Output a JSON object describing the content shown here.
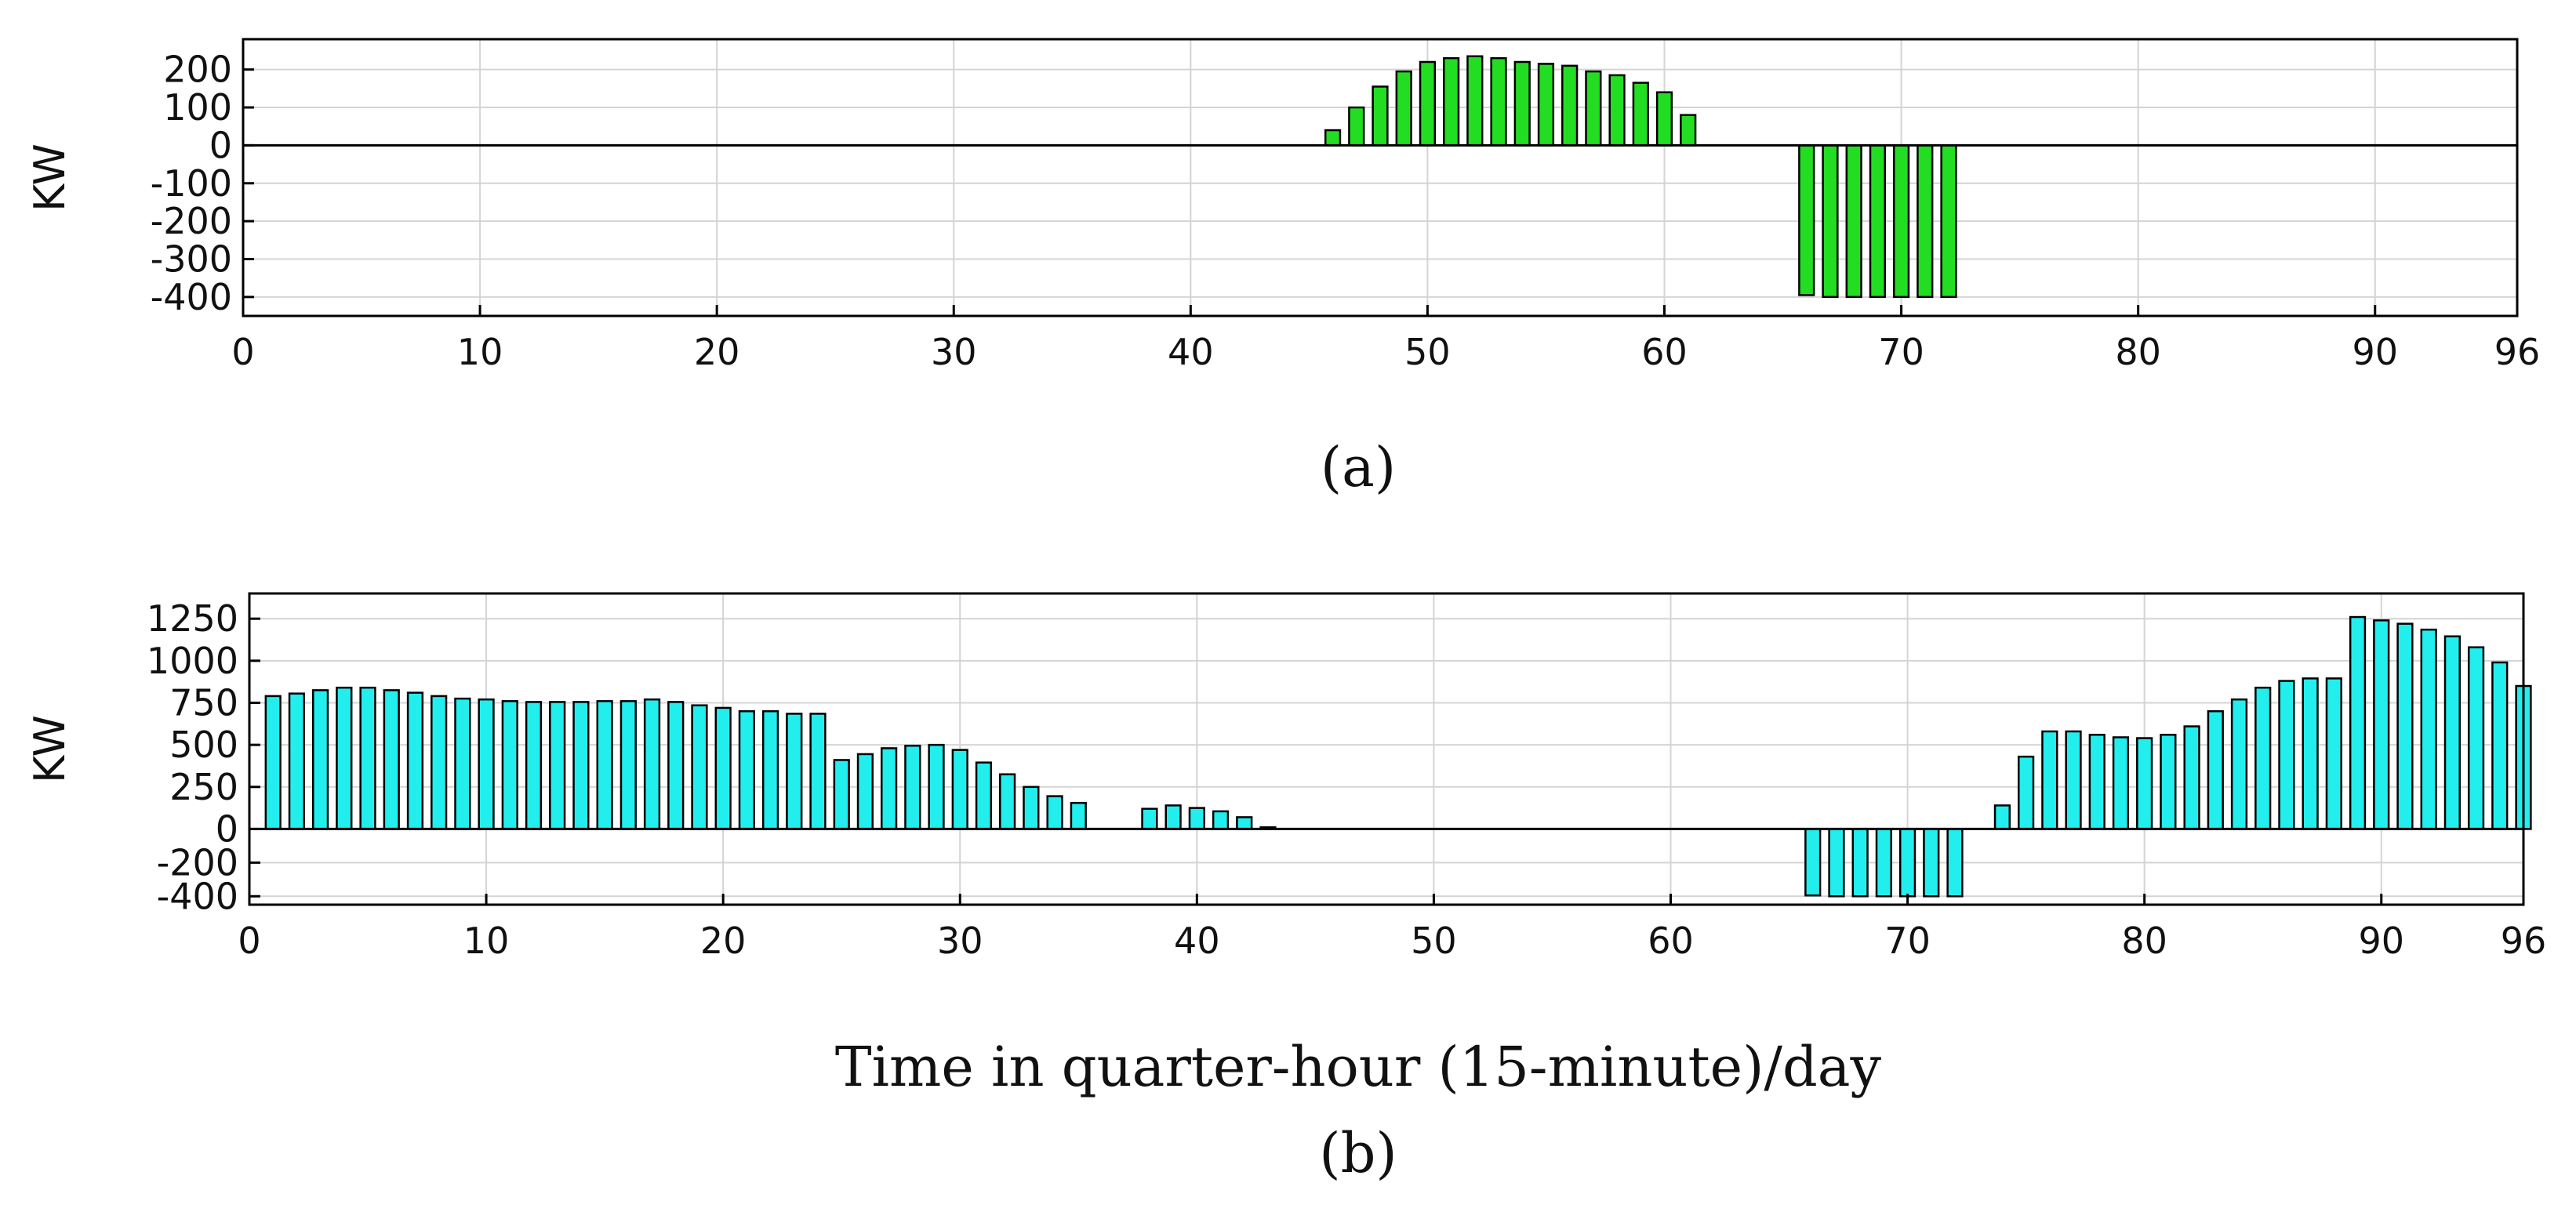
{
  "figure": {
    "xlabel": "Time in quarter-hour (15-minute)/day"
  },
  "chart_data": [
    {
      "type": "bar",
      "caption": "(a)",
      "ylabel": "KW",
      "xlim": [
        0,
        96
      ],
      "ylim": [
        -450,
        280
      ],
      "xticks": [
        0,
        10,
        20,
        30,
        40,
        50,
        60,
        70,
        80,
        90,
        96
      ],
      "yticks": [
        -400,
        -300,
        -200,
        -100,
        0,
        100,
        200
      ],
      "grid": true,
      "bar_color": "#22dd22",
      "x": [
        46,
        47,
        48,
        49,
        50,
        51,
        52,
        53,
        54,
        55,
        56,
        57,
        58,
        59,
        60,
        61,
        66,
        67,
        68,
        69,
        70,
        71,
        72
      ],
      "values": [
        40,
        100,
        155,
        195,
        220,
        230,
        235,
        230,
        220,
        215,
        210,
        195,
        185,
        165,
        140,
        80,
        -395,
        -400,
        -400,
        -400,
        -400,
        -400,
        -400
      ]
    },
    {
      "type": "bar",
      "caption": "(b)",
      "ylabel": "KW",
      "xlim": [
        0,
        96
      ],
      "ylim": [
        -450,
        1400
      ],
      "xticks": [
        0,
        10,
        20,
        30,
        40,
        50,
        60,
        70,
        80,
        90,
        96
      ],
      "yticks": [
        -400,
        -200,
        0,
        250,
        500,
        750,
        1000,
        1250
      ],
      "grid": true,
      "bar_color": "#22eeee",
      "x": [
        1,
        2,
        3,
        4,
        5,
        6,
        7,
        8,
        9,
        10,
        11,
        12,
        13,
        14,
        15,
        16,
        17,
        18,
        19,
        20,
        21,
        22,
        23,
        24,
        25,
        26,
        27,
        28,
        29,
        30,
        31,
        32,
        33,
        34,
        35,
        38,
        39,
        40,
        41,
        42,
        43,
        66,
        67,
        68,
        69,
        70,
        71,
        72,
        74,
        75,
        76,
        77,
        78,
        79,
        80,
        81,
        82,
        83,
        84,
        85,
        86,
        87,
        88,
        89,
        90,
        91,
        92,
        93,
        94,
        95,
        96
      ],
      "values": [
        790,
        805,
        825,
        840,
        840,
        825,
        810,
        790,
        775,
        770,
        760,
        755,
        755,
        755,
        760,
        760,
        770,
        755,
        735,
        720,
        700,
        700,
        685,
        685,
        410,
        445,
        480,
        495,
        500,
        470,
        395,
        325,
        250,
        195,
        155,
        120,
        140,
        125,
        105,
        70,
        10,
        -395,
        -400,
        -400,
        -400,
        -400,
        -400,
        -400,
        140,
        430,
        580,
        580,
        560,
        545,
        540,
        560,
        610,
        700,
        770,
        840,
        880,
        895,
        895,
        1260,
        1240,
        1220,
        1185,
        1145,
        1080,
        990,
        850
      ]
    }
  ]
}
